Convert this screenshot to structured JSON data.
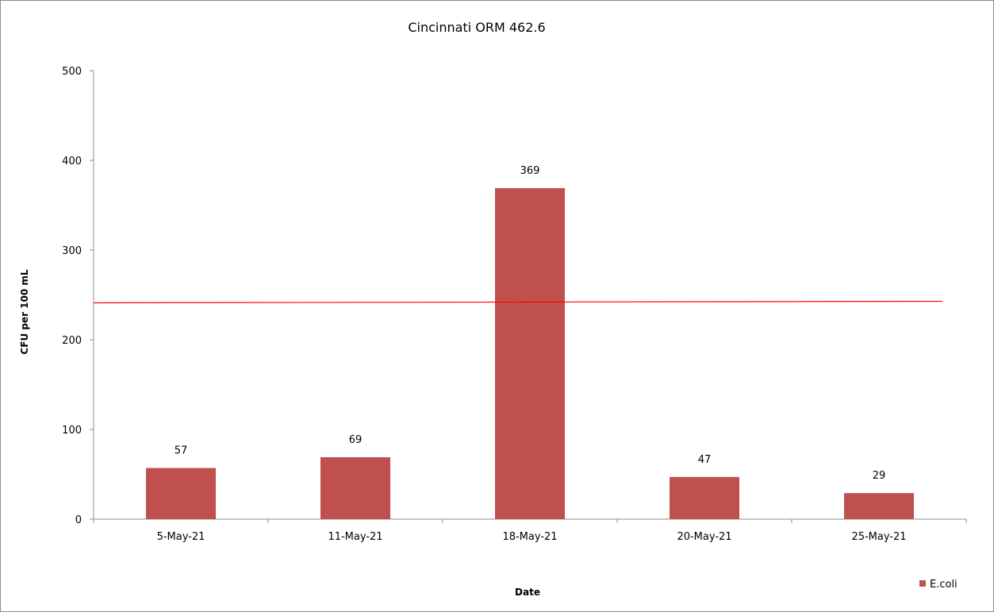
{
  "chart_data": {
    "type": "bar",
    "title": "Cincinnati ORM 462.6",
    "xlabel": "Date",
    "ylabel": "CFU per 100 mL",
    "categories": [
      "5-May-21",
      "11-May-21",
      "18-May-21",
      "20-May-21",
      "25-May-21"
    ],
    "series": [
      {
        "name": "E.coli",
        "values": [
          57,
          69,
          369,
          47,
          29
        ],
        "color": "#c0504d"
      }
    ],
    "data_labels": [
      "57",
      "69",
      "369",
      "47",
      "29"
    ],
    "reference_line": {
      "value": 242,
      "color": "#ff0000"
    },
    "ylim": [
      0,
      500
    ],
    "y_ticks": [
      0,
      100,
      200,
      300,
      400,
      500
    ],
    "y_tick_labels": [
      "0",
      "100",
      "200",
      "300",
      "400",
      "500"
    ],
    "grid": false,
    "legend_position": "bottom-right"
  }
}
